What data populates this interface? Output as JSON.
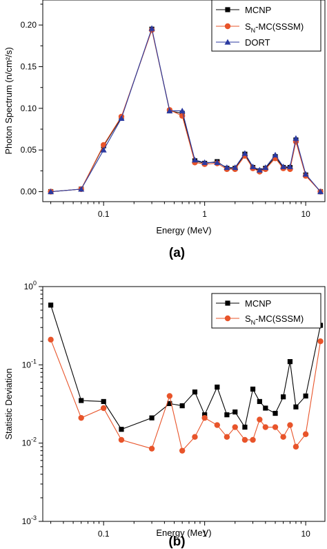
{
  "chart_data": [
    {
      "type": "line",
      "panel_label": "(a)",
      "xlabel": "Energy (MeV)",
      "ylabel": "Photon Spectrum (n/cm²/s)",
      "xscale": "log",
      "xlim": [
        0.025,
        15.5
      ],
      "ylim": [
        -0.012,
        0.23
      ],
      "xticks": [
        0.1,
        1,
        10
      ],
      "xtick_labels": [
        "0.1",
        "1",
        "10"
      ],
      "yticks": [
        0.0,
        0.05,
        0.1,
        0.15,
        0.2
      ],
      "ytick_labels": [
        "0.00",
        "0.05",
        "0.10",
        "0.15",
        "0.20"
      ],
      "legend_position": "top-right",
      "x": [
        0.03,
        0.06,
        0.1,
        0.15,
        0.3,
        0.45,
        0.6,
        0.8,
        1.0,
        1.33,
        1.66,
        2.0,
        2.5,
        3.0,
        3.5,
        4.0,
        5.0,
        6.0,
        7.0,
        8.0,
        10.0,
        14.0
      ],
      "series": [
        {
          "name": "MCNP",
          "color": "#000000",
          "marker": "square",
          "values": [
            0.0,
            0.003,
            0.055,
            0.089,
            0.195,
            0.097,
            0.094,
            0.037,
            0.034,
            0.036,
            0.028,
            0.028,
            0.045,
            0.029,
            0.025,
            0.028,
            0.042,
            0.029,
            0.029,
            0.062,
            0.02,
            0.0
          ]
        },
        {
          "name": "S",
          "name_sub": "N",
          "name_suffix": "-MC(SSSM)",
          "color": "#e8542a",
          "marker": "circle",
          "values": [
            0.0,
            0.003,
            0.056,
            0.09,
            0.194,
            0.098,
            0.091,
            0.035,
            0.033,
            0.034,
            0.027,
            0.027,
            0.043,
            0.028,
            0.024,
            0.027,
            0.04,
            0.028,
            0.027,
            0.06,
            0.019,
            0.0
          ]
        },
        {
          "name": "DORT",
          "color": "#2b3aa0",
          "marker": "triangle",
          "values": [
            0.0,
            0.003,
            0.05,
            0.088,
            0.196,
            0.097,
            0.097,
            0.038,
            0.035,
            0.035,
            0.029,
            0.029,
            0.046,
            0.03,
            0.026,
            0.029,
            0.044,
            0.03,
            0.03,
            0.064,
            0.021,
            0.0
          ]
        }
      ]
    },
    {
      "type": "line",
      "panel_label": "(b)",
      "xlabel": "Energy (MeV)",
      "ylabel": "Statistic Deviation",
      "xscale": "log",
      "yscale": "log",
      "xlim": [
        0.025,
        15.5
      ],
      "ylim": [
        0.001,
        1.0
      ],
      "xticks": [
        0.1,
        1,
        10
      ],
      "xtick_labels": [
        "0.1",
        "1",
        "10"
      ],
      "yticks": [
        0.001,
        0.01,
        0.1,
        1
      ],
      "ytick_base": "10",
      "ytick_exponents": [
        "-3",
        "-2",
        "-1",
        "0"
      ],
      "legend_position": "top-right",
      "x": [
        0.03,
        0.06,
        0.1,
        0.15,
        0.3,
        0.45,
        0.6,
        0.8,
        1.0,
        1.33,
        1.66,
        2.0,
        2.5,
        3.0,
        3.5,
        4.0,
        5.0,
        6.0,
        7.0,
        8.0,
        10.0,
        14.0
      ],
      "series": [
        {
          "name": "MCNP",
          "color": "#000000",
          "marker": "square",
          "values": [
            0.58,
            0.035,
            0.034,
            0.015,
            0.021,
            0.032,
            0.03,
            0.045,
            0.023,
            0.052,
            0.023,
            0.025,
            0.016,
            0.049,
            0.034,
            0.028,
            0.024,
            0.039,
            0.11,
            0.029,
            0.04,
            0.32
          ]
        },
        {
          "name": "S",
          "name_sub": "N",
          "name_suffix": "-MC(SSSM)",
          "color": "#e8542a",
          "marker": "circle",
          "values": [
            0.21,
            0.021,
            0.028,
            0.011,
            0.0085,
            0.04,
            0.008,
            0.012,
            0.021,
            0.017,
            0.012,
            0.016,
            0.011,
            0.011,
            0.02,
            0.016,
            0.016,
            0.012,
            0.017,
            0.009,
            0.013,
            0.2
          ]
        }
      ]
    }
  ]
}
